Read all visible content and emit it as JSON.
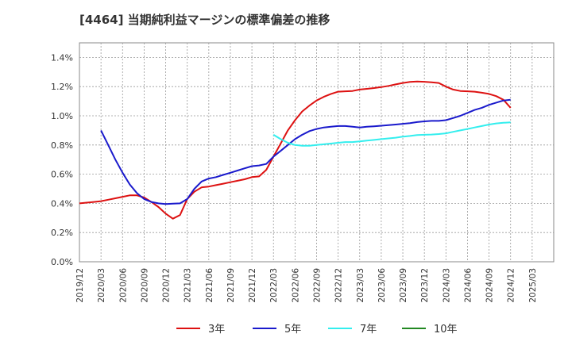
{
  "chart_data": {
    "type": "line",
    "title": "[4464]  当期純利益マージンの標準偏差の推移",
    "xlabel": "",
    "ylabel": "",
    "x_tick_labels": [
      "2019/12",
      "2020/03",
      "2020/06",
      "2020/09",
      "2020/12",
      "2021/03",
      "2021/06",
      "2021/09",
      "2021/12",
      "2022/03",
      "2022/06",
      "2022/09",
      "2022/12",
      "2023/03",
      "2023/06",
      "2023/09",
      "2023/12",
      "2024/03",
      "2024/06",
      "2024/09",
      "2024/12",
      "2025/03"
    ],
    "y_tick_labels": [
      "0.0%",
      "0.2%",
      "0.4%",
      "0.6%",
      "0.8%",
      "1.0%",
      "1.2%",
      "1.4%"
    ],
    "ylim": [
      0,
      1.5
    ],
    "grid": true,
    "legend_position": "bottom",
    "series": [
      {
        "name": "3年",
        "color": "#dd1111",
        "points": [
          [
            "2019/12",
            0.4
          ],
          [
            "2020/01",
            0.405
          ],
          [
            "2020/02",
            0.41
          ],
          [
            "2020/03",
            0.415
          ],
          [
            "2020/04",
            0.425
          ],
          [
            "2020/05",
            0.435
          ],
          [
            "2020/06",
            0.445
          ],
          [
            "2020/07",
            0.455
          ],
          [
            "2020/08",
            0.455
          ],
          [
            "2020/09",
            0.44
          ],
          [
            "2020/10",
            0.41
          ],
          [
            "2020/11",
            0.375
          ],
          [
            "2020/12",
            0.33
          ],
          [
            "2021/01",
            0.295
          ],
          [
            "2021/02",
            0.32
          ],
          [
            "2021/03",
            0.43
          ],
          [
            "2021/04",
            0.48
          ],
          [
            "2021/05",
            0.51
          ],
          [
            "2021/06",
            0.515
          ],
          [
            "2021/07",
            0.525
          ],
          [
            "2021/08",
            0.535
          ],
          [
            "2021/09",
            0.545
          ],
          [
            "2021/10",
            0.555
          ],
          [
            "2021/11",
            0.565
          ],
          [
            "2021/12",
            0.58
          ],
          [
            "2022/01",
            0.585
          ],
          [
            "2022/02",
            0.63
          ],
          [
            "2022/03",
            0.72
          ],
          [
            "2022/04",
            0.81
          ],
          [
            "2022/05",
            0.9
          ],
          [
            "2022/06",
            0.97
          ],
          [
            "2022/07",
            1.03
          ],
          [
            "2022/08",
            1.07
          ],
          [
            "2022/09",
            1.105
          ],
          [
            "2022/10",
            1.13
          ],
          [
            "2022/11",
            1.15
          ],
          [
            "2022/12",
            1.165
          ],
          [
            "2023/01",
            1.168
          ],
          [
            "2023/02",
            1.17
          ],
          [
            "2023/03",
            1.18
          ],
          [
            "2023/04",
            1.185
          ],
          [
            "2023/05",
            1.19
          ],
          [
            "2023/06",
            1.197
          ],
          [
            "2023/07",
            1.205
          ],
          [
            "2023/08",
            1.215
          ],
          [
            "2023/09",
            1.225
          ],
          [
            "2023/10",
            1.232
          ],
          [
            "2023/11",
            1.235
          ],
          [
            "2023/12",
            1.233
          ],
          [
            "2024/01",
            1.23
          ],
          [
            "2024/02",
            1.225
          ],
          [
            "2024/03",
            1.2
          ],
          [
            "2024/04",
            1.18
          ],
          [
            "2024/05",
            1.17
          ],
          [
            "2024/06",
            1.168
          ],
          [
            "2024/07",
            1.165
          ],
          [
            "2024/08",
            1.158
          ],
          [
            "2024/09",
            1.15
          ],
          [
            "2024/10",
            1.135
          ],
          [
            "2024/11",
            1.11
          ],
          [
            "2024/12",
            1.055
          ]
        ]
      },
      {
        "name": "5年",
        "color": "#1a1acc",
        "points": [
          [
            "2020/03",
            0.9
          ],
          [
            "2020/04",
            0.8
          ],
          [
            "2020/05",
            0.7
          ],
          [
            "2020/06",
            0.61
          ],
          [
            "2020/07",
            0.53
          ],
          [
            "2020/08",
            0.47
          ],
          [
            "2020/09",
            0.43
          ],
          [
            "2020/10",
            0.41
          ],
          [
            "2020/11",
            0.4
          ],
          [
            "2020/12",
            0.395
          ],
          [
            "2021/01",
            0.398
          ],
          [
            "2021/02",
            0.4
          ],
          [
            "2021/03",
            0.43
          ],
          [
            "2021/04",
            0.5
          ],
          [
            "2021/05",
            0.55
          ],
          [
            "2021/06",
            0.57
          ],
          [
            "2021/07",
            0.58
          ],
          [
            "2021/08",
            0.595
          ],
          [
            "2021/09",
            0.61
          ],
          [
            "2021/10",
            0.625
          ],
          [
            "2021/11",
            0.64
          ],
          [
            "2021/12",
            0.655
          ],
          [
            "2022/01",
            0.66
          ],
          [
            "2022/02",
            0.67
          ],
          [
            "2022/03",
            0.72
          ],
          [
            "2022/04",
            0.76
          ],
          [
            "2022/05",
            0.8
          ],
          [
            "2022/06",
            0.84
          ],
          [
            "2022/07",
            0.87
          ],
          [
            "2022/08",
            0.895
          ],
          [
            "2022/09",
            0.91
          ],
          [
            "2022/10",
            0.92
          ],
          [
            "2022/11",
            0.925
          ],
          [
            "2022/12",
            0.93
          ],
          [
            "2023/01",
            0.93
          ],
          [
            "2023/02",
            0.925
          ],
          [
            "2023/03",
            0.92
          ],
          [
            "2023/04",
            0.925
          ],
          [
            "2023/05",
            0.928
          ],
          [
            "2023/06",
            0.932
          ],
          [
            "2023/07",
            0.936
          ],
          [
            "2023/08",
            0.94
          ],
          [
            "2023/09",
            0.945
          ],
          [
            "2023/10",
            0.95
          ],
          [
            "2023/11",
            0.957
          ],
          [
            "2023/12",
            0.962
          ],
          [
            "2024/01",
            0.965
          ],
          [
            "2024/02",
            0.965
          ],
          [
            "2024/03",
            0.97
          ],
          [
            "2024/04",
            0.985
          ],
          [
            "2024/05",
            1.0
          ],
          [
            "2024/06",
            1.02
          ],
          [
            "2024/07",
            1.04
          ],
          [
            "2024/08",
            1.055
          ],
          [
            "2024/09",
            1.075
          ],
          [
            "2024/10",
            1.09
          ],
          [
            "2024/11",
            1.105
          ],
          [
            "2024/12",
            1.11
          ]
        ]
      },
      {
        "name": "7年",
        "color": "#33eeee",
        "points": [
          [
            "2022/03",
            0.87
          ],
          [
            "2022/04",
            0.84
          ],
          [
            "2022/05",
            0.815
          ],
          [
            "2022/06",
            0.8
          ],
          [
            "2022/07",
            0.795
          ],
          [
            "2022/08",
            0.795
          ],
          [
            "2022/09",
            0.8
          ],
          [
            "2022/10",
            0.805
          ],
          [
            "2022/11",
            0.81
          ],
          [
            "2022/12",
            0.815
          ],
          [
            "2023/01",
            0.82
          ],
          [
            "2023/02",
            0.82
          ],
          [
            "2023/03",
            0.825
          ],
          [
            "2023/04",
            0.83
          ],
          [
            "2023/05",
            0.835
          ],
          [
            "2023/06",
            0.84
          ],
          [
            "2023/07",
            0.845
          ],
          [
            "2023/08",
            0.85
          ],
          [
            "2023/09",
            0.857
          ],
          [
            "2023/10",
            0.862
          ],
          [
            "2023/11",
            0.868
          ],
          [
            "2023/12",
            0.87
          ],
          [
            "2024/01",
            0.872
          ],
          [
            "2024/02",
            0.875
          ],
          [
            "2024/03",
            0.88
          ],
          [
            "2024/04",
            0.89
          ],
          [
            "2024/05",
            0.9
          ],
          [
            "2024/06",
            0.91
          ],
          [
            "2024/07",
            0.92
          ],
          [
            "2024/08",
            0.93
          ],
          [
            "2024/09",
            0.94
          ],
          [
            "2024/10",
            0.948
          ],
          [
            "2024/11",
            0.952
          ],
          [
            "2024/12",
            0.955
          ]
        ]
      },
      {
        "name": "10年",
        "color": "#228822",
        "points": []
      }
    ]
  }
}
